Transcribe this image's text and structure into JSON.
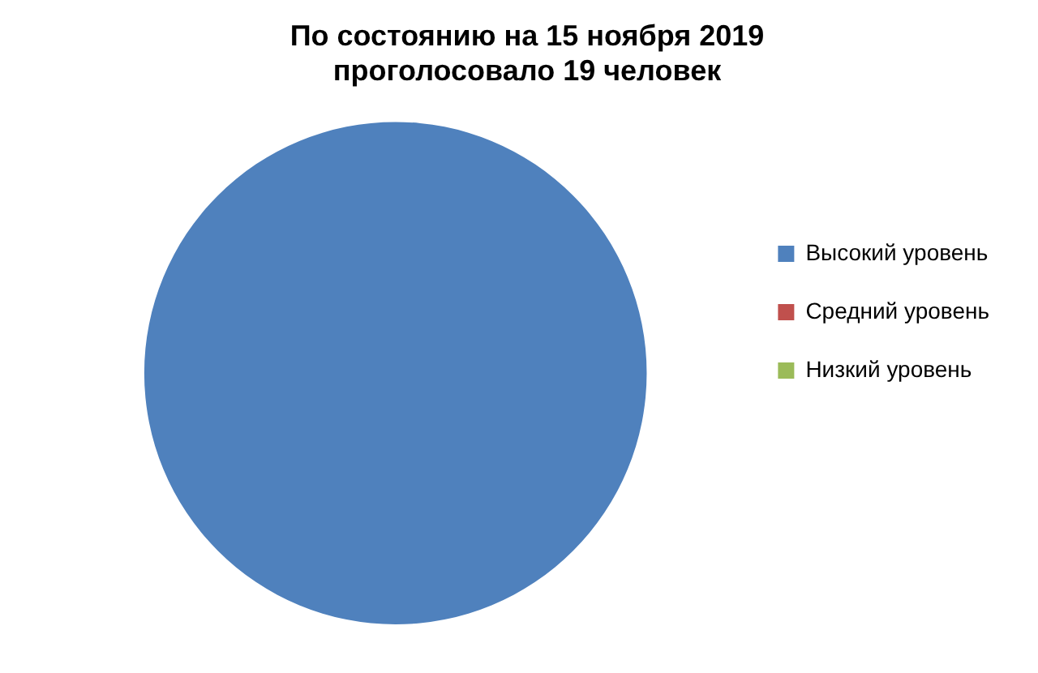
{
  "chart_data": {
    "type": "pie",
    "title": "По состоянию на 15 ноября 2019\nпроголосовало 19 человек",
    "categories": [
      "Высокий уровень",
      "Средний уровень",
      "Низкий уровень"
    ],
    "values": [
      100,
      0,
      0
    ],
    "colors": [
      "#4f81bd",
      "#c0504d",
      "#9bbb59"
    ],
    "legend": "right"
  }
}
